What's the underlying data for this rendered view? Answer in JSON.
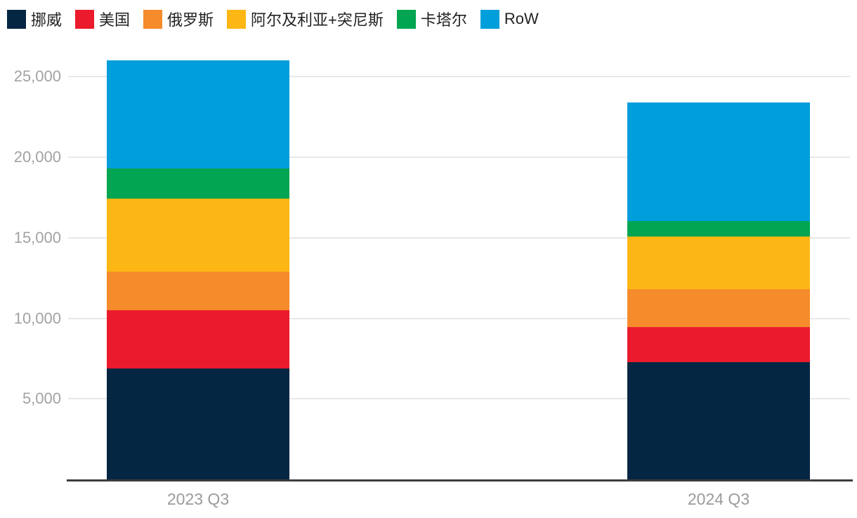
{
  "chart_data": {
    "type": "bar",
    "stacked": true,
    "title": "",
    "xlabel": "",
    "ylabel": "",
    "categories": [
      "2023 Q3",
      "2024 Q3"
    ],
    "series": [
      {
        "name": "挪威",
        "color": "#042642",
        "values": [
          6900,
          7270
        ]
      },
      {
        "name": "美国",
        "color": "#EB1B2D",
        "values": [
          3620,
          2200
        ]
      },
      {
        "name": "俄罗斯",
        "color": "#F68B2B",
        "values": [
          2370,
          2320
        ]
      },
      {
        "name": "阿尔及利亚+突尼斯",
        "color": "#FCB714",
        "values": [
          4520,
          3290
        ]
      },
      {
        "name": "卡塔尔",
        "color": "#02A551",
        "values": [
          1880,
          950
        ]
      },
      {
        "name": "RoW",
        "color": "#009EDB",
        "values": [
          6710,
          7380
        ]
      }
    ],
    "totals": [
      26000,
      23410
    ],
    "ylim": [
      0,
      26500
    ],
    "yticks": [
      5000,
      10000,
      15000,
      20000,
      25000
    ],
    "ytick_labels": [
      "5,000",
      "10,000",
      "15,000",
      "20,000",
      "25,000"
    ],
    "grid": "horizontal-light-gray",
    "legend_position": "top-left",
    "colors": {
      "grid": "#e8e8e8",
      "axis_line": "#3d3d3d",
      "tick_text": "#a2a2a2",
      "legend_text": "#222222",
      "background": "#ffffff"
    }
  }
}
